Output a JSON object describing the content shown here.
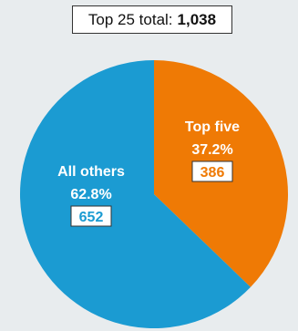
{
  "header": {
    "total_label": "Top 25 total:",
    "total_value": "1,038"
  },
  "colors": {
    "background": "#e8ecee",
    "all_others": "#1b9bd2",
    "top_five": "#ef7a05",
    "label_text": "#ffffff",
    "value_box_fill": "#ffffff"
  },
  "chart_data": {
    "type": "pie",
    "slices": [
      {
        "key": "top_five",
        "label": "Top five",
        "percent_label": "37.2%",
        "value": 386,
        "value_label": "386",
        "color": "#ef7a05"
      },
      {
        "key": "all_others",
        "label": "All others",
        "percent_label": "62.8%",
        "value": 652,
        "value_label": "652",
        "color": "#1b9bd2"
      }
    ]
  }
}
